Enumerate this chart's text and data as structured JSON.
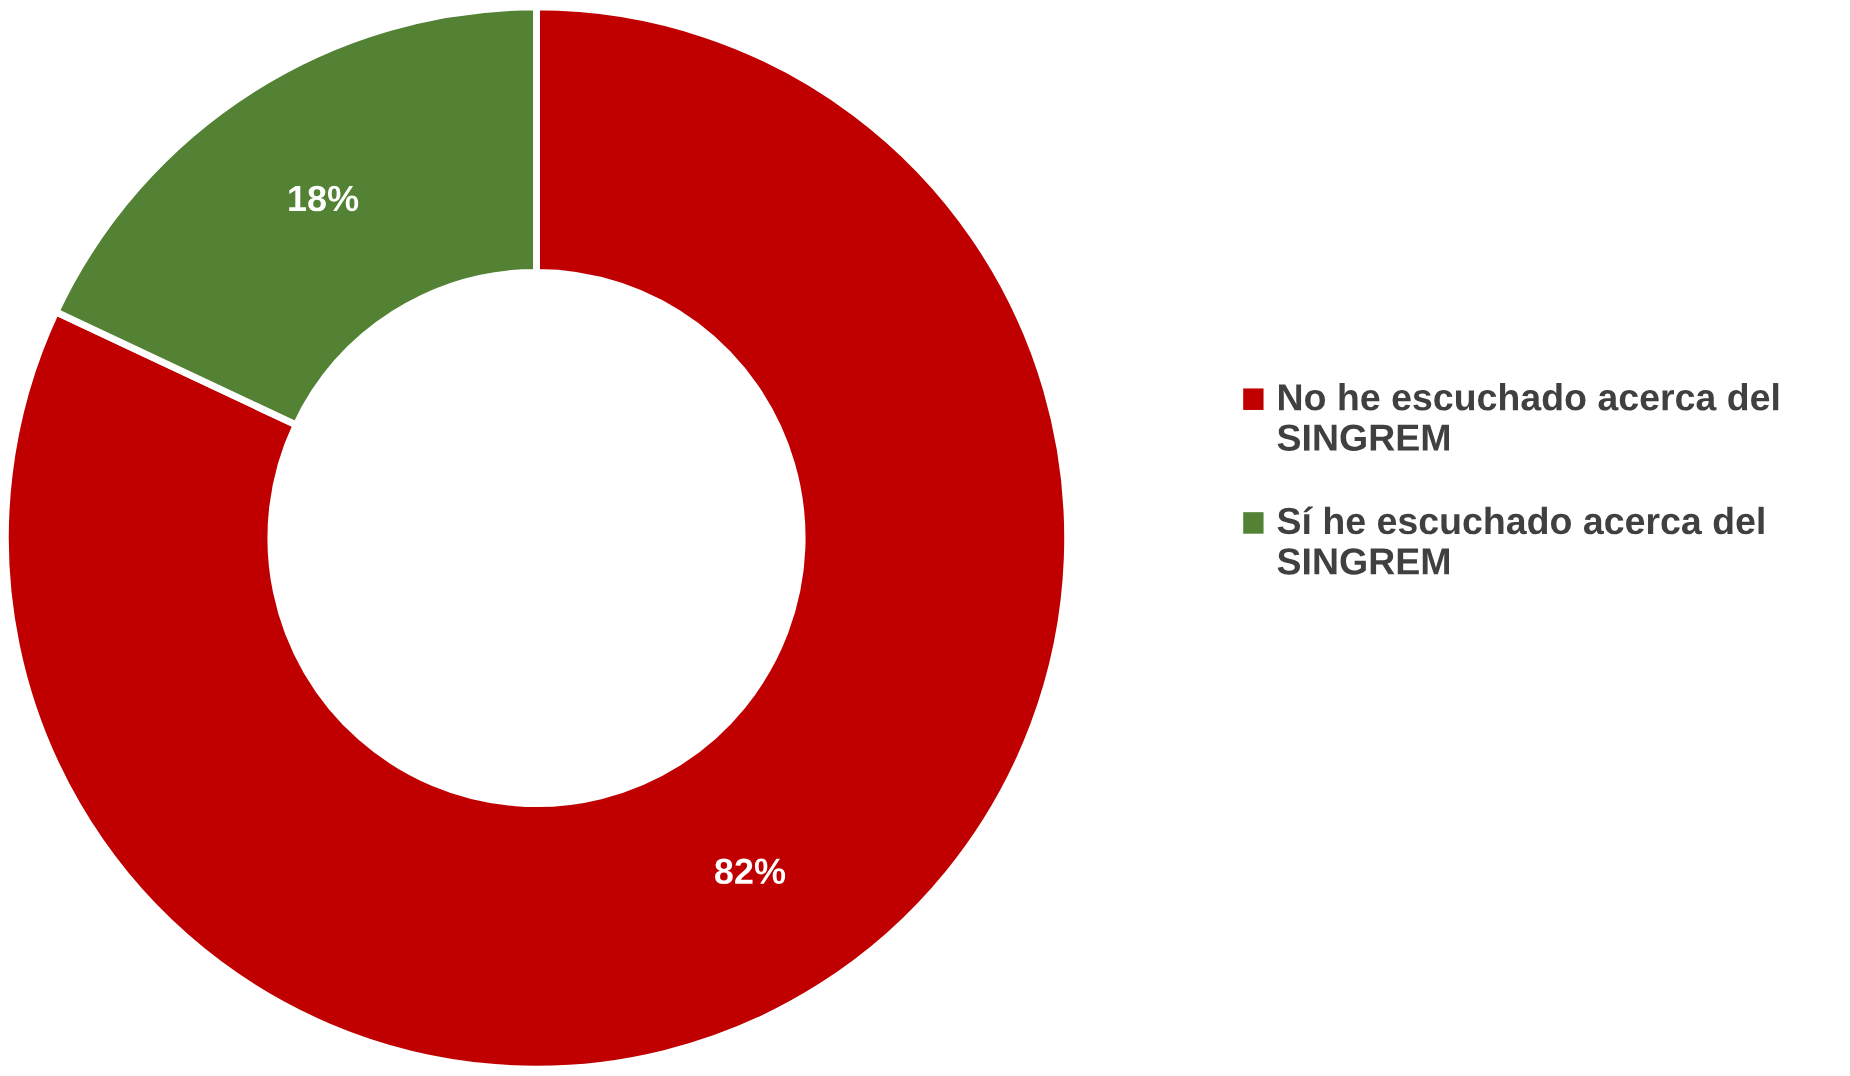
{
  "chart_data": {
    "type": "donut",
    "categories": [
      "No he escuchado acerca del SINGREM",
      "Sí he escuchado acerca del SINGREM"
    ],
    "values": [
      82,
      18
    ],
    "colors": [
      "#c00000",
      "#548235"
    ],
    "value_labels": [
      "82%",
      "18%"
    ],
    "legend": "right"
  }
}
